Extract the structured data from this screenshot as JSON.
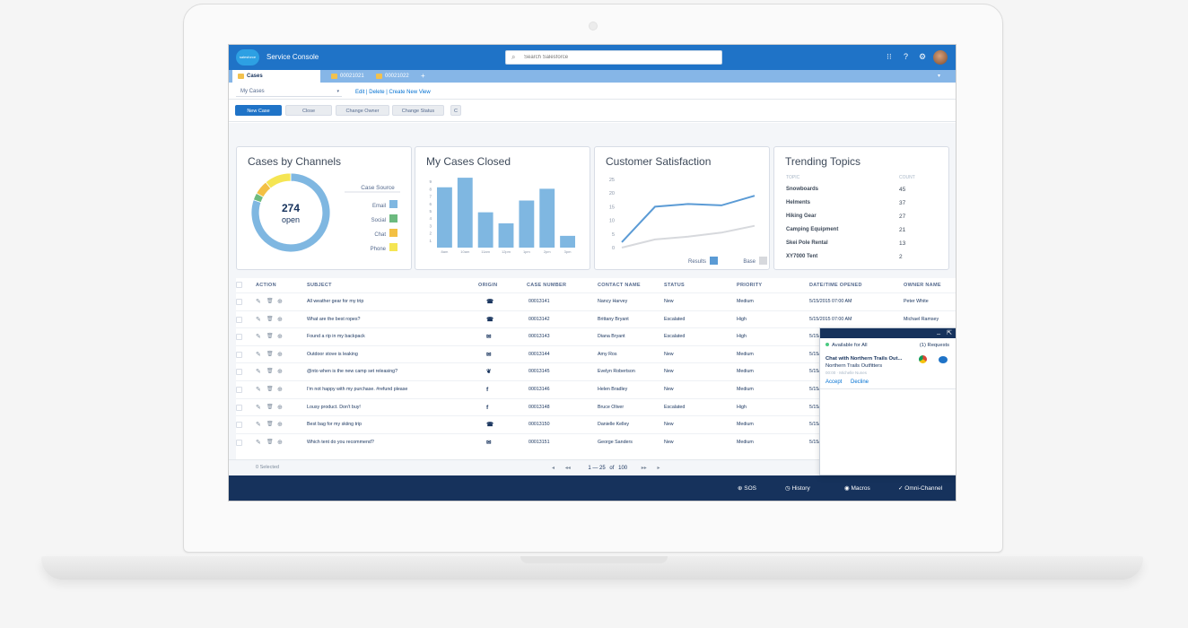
{
  "header": {
    "logo_text": "salesforce",
    "app_title": "Service Console",
    "search_placeholder": "Search Salesforce"
  },
  "tabs": [
    {
      "label": "Cases",
      "active": true
    },
    {
      "label": "00021021",
      "active": false
    },
    {
      "label": "00021022",
      "active": false
    }
  ],
  "tabs_add_label": "+",
  "listview": {
    "selected": "My Cases",
    "links": "Edit | Delete | Create New View"
  },
  "buttons": {
    "new_case": "New Case",
    "close": "Close",
    "change_owner": "Change Owner",
    "change_status": "Change Status",
    "refresh": "C"
  },
  "cards": {
    "channels": {
      "title": "Cases by Channels",
      "center_value": "274",
      "center_label": "open",
      "legend_title": "Case Source",
      "legend": [
        {
          "label": "Email",
          "color": "#7fb7e1"
        },
        {
          "label": "Social",
          "color": "#6cba7f"
        },
        {
          "label": "Chat",
          "color": "#f3c044"
        },
        {
          "label": "Phone",
          "color": "#f5e553"
        }
      ]
    },
    "closed": {
      "title": "My Cases Closed"
    },
    "satisfaction": {
      "title": "Customer Satisfaction",
      "legend": [
        {
          "label": "Results",
          "color": "#5b9bd5"
        },
        {
          "label": "Base",
          "color": "#d7d9dd"
        }
      ]
    },
    "trending": {
      "title": "Trending Topics",
      "col_topic": "TOPIC",
      "col_count": "COUNT",
      "rows": [
        {
          "topic": "Snowboards",
          "count": "45"
        },
        {
          "topic": "Helments",
          "count": "37"
        },
        {
          "topic": "Hiking Gear",
          "count": "27"
        },
        {
          "topic": "Camping Equipment",
          "count": "21"
        },
        {
          "topic": "Skei Pole Rental",
          "count": "13"
        },
        {
          "topic": "XY7000 Tent",
          "count": "2"
        }
      ]
    }
  },
  "chart_data": [
    {
      "type": "pie",
      "categories": [
        "Email",
        "Social",
        "Chat",
        "Phone"
      ],
      "values": [
        220,
        8,
        16,
        30
      ]
    },
    {
      "type": "bar",
      "categories": [
        "8am",
        "10am",
        "11am",
        "12pm",
        "1pm",
        "2pm",
        "3pm"
      ],
      "values": [
        8.2,
        9.5,
        4.8,
        3.3,
        6.4,
        8.0,
        1.6
      ],
      "ylim": [
        0,
        10
      ],
      "yticks": [
        "1",
        "2",
        "3",
        "4",
        "5",
        "6",
        "7",
        "8",
        "9"
      ]
    },
    {
      "type": "line",
      "x": [
        1,
        2,
        3,
        4,
        5
      ],
      "series": [
        {
          "name": "Results",
          "values": [
            2,
            15,
            16,
            15.5,
            19
          ]
        },
        {
          "name": "Base",
          "values": [
            0,
            3,
            4,
            5.5,
            8
          ]
        }
      ],
      "ylim": [
        0,
        25
      ],
      "yticks": [
        "0",
        "5",
        "10",
        "15",
        "20",
        "25"
      ]
    }
  ],
  "table": {
    "headers": [
      "ACTION",
      "SUBJECT",
      "ORIGIN",
      "CASE NUMBER",
      "CONTACT NAME",
      "STATUS",
      "PRIORITY",
      "DATE/TIME OPENED",
      "OWNER NAME"
    ],
    "rows": [
      {
        "subject": "All weather gear for my trip",
        "origin": "phone",
        "case": "00013141",
        "contact": "Nancy Harvey",
        "status": "New",
        "priority": "Medium",
        "date": "5/15/2015 07:00 AM",
        "owner": "Peter White"
      },
      {
        "subject": "What are the best ropes?",
        "origin": "phone",
        "case": "00013142",
        "contact": "Brittany Bryant",
        "status": "Escalated",
        "priority": "High",
        "date": "5/15/2015 07:00 AM",
        "owner": "Michael Ramsey"
      },
      {
        "subject": "Found a rip in my backpack",
        "origin": "email",
        "case": "00013143",
        "contact": "Diana Bryant",
        "status": "Escalated",
        "priority": "High",
        "date": "5/15/20",
        "owner": ""
      },
      {
        "subject": "Outdoor stove is leaking",
        "origin": "email",
        "case": "00013144",
        "contact": "Amy Ros",
        "status": "New",
        "priority": "Medium",
        "date": "5/15/20",
        "owner": ""
      },
      {
        "subject": "@nto when is the new camp set releasing?",
        "origin": "twitter",
        "case": "00013145",
        "contact": "Evelyn Robertson",
        "status": "New",
        "priority": "Medium",
        "date": "5/15/20",
        "owner": ""
      },
      {
        "subject": "I'm not happy with my purchase. #refund please",
        "origin": "facebook",
        "case": "00013146",
        "contact": "Helen Bradley",
        "status": "New",
        "priority": "Medium",
        "date": "5/15/20",
        "owner": ""
      },
      {
        "subject": "Lousy product. Don't buy!",
        "origin": "facebook",
        "case": "00013148",
        "contact": "Bruce Oliver",
        "status": "Escalated",
        "priority": "High",
        "date": "5/15/20",
        "owner": ""
      },
      {
        "subject": "Best bag for my skiing trip",
        "origin": "phone",
        "case": "00013150",
        "contact": "Danielle Kelley",
        "status": "New",
        "priority": "Medium",
        "date": "5/15/20",
        "owner": ""
      },
      {
        "subject": "Which tent do you recommend?",
        "origin": "email",
        "case": "00013151",
        "contact": "George Sanders",
        "status": "New",
        "priority": "Medium",
        "date": "5/15/20",
        "owner": ""
      }
    ]
  },
  "footer": {
    "selected": "0 Selected",
    "pager_range": "1 — 25",
    "pager_of": "of",
    "pager_total": "100"
  },
  "utility": [
    {
      "label": "SOS",
      "icon": "sos-icon"
    },
    {
      "label": "History",
      "icon": "clock-icon"
    },
    {
      "label": "Macros",
      "icon": "macros-icon"
    },
    {
      "label": "Omni-Channel",
      "icon": "omni-icon"
    }
  ],
  "omni": {
    "status": "Available for All",
    "requests": "(1) Requests",
    "item_title": "Chat with Northern Trails Out...",
    "item_sub": "Northern Trails Outfitters",
    "item_meta": "00:00 · Michelle Nunes",
    "accept": "Accept",
    "decline": "Decline"
  }
}
